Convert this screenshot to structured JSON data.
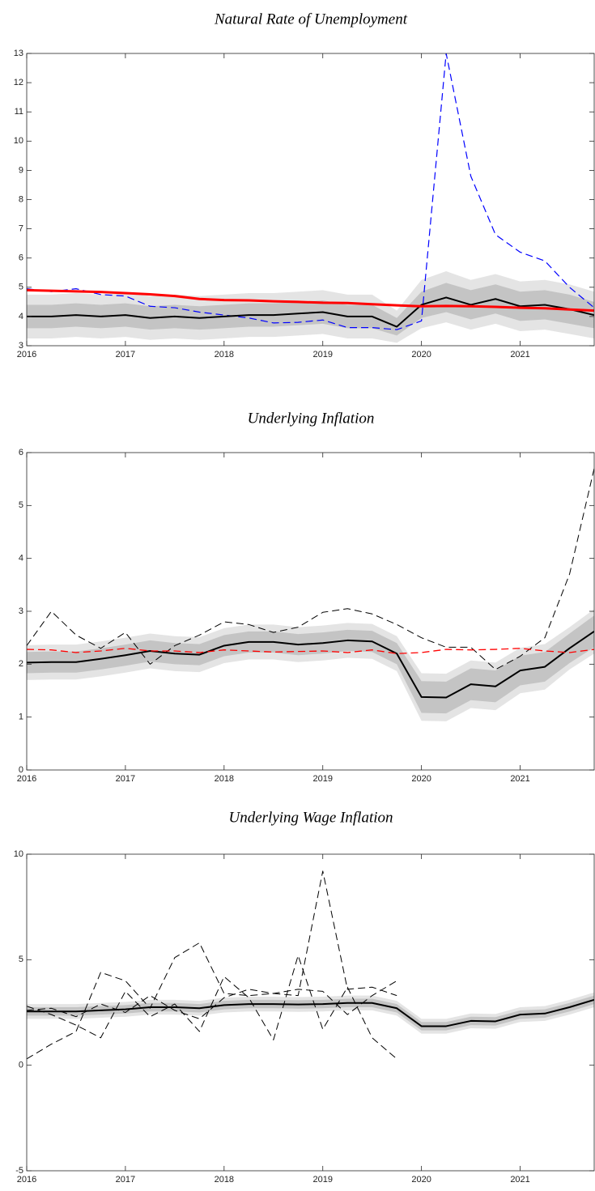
{
  "chart_data": [
    {
      "type": "line",
      "title": "Natural Rate of Unemployment",
      "x": [
        2016,
        2016.25,
        2016.5,
        2016.75,
        2017,
        2017.25,
        2017.5,
        2017.75,
        2018,
        2018.25,
        2018.5,
        2018.75,
        2019,
        2019.25,
        2019.5,
        2019.75,
        2020,
        2020.25,
        2020.5,
        2020.75,
        2021,
        2021.25,
        2021.5,
        2021.75
      ],
      "xlim": [
        2016,
        2021.75
      ],
      "xticks": [
        2016,
        2017,
        2018,
        2019,
        2020,
        2021
      ],
      "ylim": [
        3,
        13
      ],
      "yticks": [
        3,
        4,
        5,
        6,
        7,
        8,
        9,
        10,
        11,
        12,
        13
      ],
      "bands": [
        {
          "color": "#e4e4e4",
          "lower": [
            3.25,
            3.25,
            3.3,
            3.25,
            3.3,
            3.2,
            3.25,
            3.2,
            3.25,
            3.3,
            3.3,
            3.35,
            3.4,
            3.25,
            3.25,
            3.1,
            3.6,
            3.8,
            3.55,
            3.75,
            3.5,
            3.55,
            3.4,
            3.25
          ],
          "upper": [
            4.75,
            4.75,
            4.8,
            4.75,
            4.8,
            4.7,
            4.75,
            4.7,
            4.75,
            4.8,
            4.8,
            4.85,
            4.9,
            4.75,
            4.75,
            4.2,
            5.25,
            5.55,
            5.25,
            5.45,
            5.2,
            5.25,
            5.1,
            4.85
          ]
        },
        {
          "color": "#c4c4c4",
          "lower": [
            3.6,
            3.6,
            3.65,
            3.6,
            3.65,
            3.55,
            3.6,
            3.55,
            3.6,
            3.65,
            3.65,
            3.7,
            3.75,
            3.6,
            3.6,
            3.35,
            3.95,
            4.15,
            3.9,
            4.1,
            3.85,
            3.9,
            3.75,
            3.6
          ],
          "upper": [
            4.4,
            4.4,
            4.45,
            4.4,
            4.45,
            4.35,
            4.4,
            4.35,
            4.4,
            4.45,
            4.45,
            4.5,
            4.55,
            4.4,
            4.4,
            3.95,
            4.85,
            5.15,
            4.9,
            5.1,
            4.85,
            4.9,
            4.75,
            4.5
          ]
        }
      ],
      "series": [
        {
          "color": "#0000ff",
          "dashed": true,
          "width": 1.2,
          "values": [
            4.95,
            4.85,
            4.95,
            4.75,
            4.7,
            4.35,
            4.3,
            4.15,
            4.05,
            3.95,
            3.78,
            3.8,
            3.88,
            3.62,
            3.62,
            3.55,
            3.85,
            13.0,
            8.8,
            6.8,
            6.2,
            5.9,
            5.0,
            4.3
          ]
        },
        {
          "color": "#000000",
          "dashed": false,
          "width": 2,
          "values": [
            4.0,
            4.0,
            4.05,
            4.0,
            4.05,
            3.95,
            4.0,
            3.95,
            4.0,
            4.05,
            4.05,
            4.1,
            4.15,
            4.0,
            4.0,
            3.65,
            4.4,
            4.65,
            4.4,
            4.6,
            4.35,
            4.4,
            4.25,
            4.05
          ]
        },
        {
          "color": "#ff0000",
          "dashed": false,
          "width": 3,
          "values": [
            4.9,
            4.88,
            4.86,
            4.84,
            4.8,
            4.76,
            4.7,
            4.6,
            4.56,
            4.55,
            4.52,
            4.5,
            4.47,
            4.46,
            4.42,
            4.38,
            4.35,
            4.36,
            4.35,
            4.33,
            4.3,
            4.28,
            4.24,
            4.2
          ]
        }
      ]
    },
    {
      "type": "line",
      "title": "Underlying Inflation",
      "x": [
        2016,
        2016.25,
        2016.5,
        2016.75,
        2017,
        2017.25,
        2017.5,
        2017.75,
        2018,
        2018.25,
        2018.5,
        2018.75,
        2019,
        2019.25,
        2019.5,
        2019.75,
        2020,
        2020.25,
        2020.5,
        2020.75,
        2021,
        2021.25,
        2021.5,
        2021.75
      ],
      "xlim": [
        2016,
        2021.75
      ],
      "xticks": [
        2016,
        2017,
        2018,
        2019,
        2020,
        2021
      ],
      "ylim": [
        0,
        6
      ],
      "yticks": [
        0,
        1,
        2,
        3,
        4,
        5,
        6
      ],
      "bands": [
        {
          "color": "#e4e4e4",
          "lower": [
            1.7,
            1.71,
            1.71,
            1.77,
            1.84,
            1.92,
            1.87,
            1.85,
            2.02,
            2.09,
            2.09,
            2.04,
            2.07,
            2.12,
            2.1,
            1.87,
            0.93,
            0.92,
            1.17,
            1.13,
            1.45,
            1.52,
            1.9,
            2.2
          ],
          "upper": [
            2.36,
            2.37,
            2.37,
            2.43,
            2.5,
            2.58,
            2.53,
            2.51,
            2.68,
            2.75,
            2.75,
            2.7,
            2.73,
            2.78,
            2.76,
            2.53,
            1.83,
            1.82,
            2.07,
            2.03,
            2.31,
            2.38,
            2.7,
            3.04
          ]
        },
        {
          "color": "#c4c4c4",
          "lower": [
            1.83,
            1.84,
            1.84,
            1.9,
            1.97,
            2.05,
            2.0,
            1.98,
            2.15,
            2.22,
            2.22,
            2.17,
            2.2,
            2.25,
            2.23,
            2.0,
            1.08,
            1.07,
            1.32,
            1.28,
            1.6,
            1.67,
            2.02,
            2.32
          ],
          "upper": [
            2.23,
            2.24,
            2.24,
            2.3,
            2.37,
            2.45,
            2.4,
            2.38,
            2.55,
            2.62,
            2.62,
            2.57,
            2.6,
            2.65,
            2.63,
            2.4,
            1.68,
            1.67,
            1.92,
            1.88,
            2.16,
            2.23,
            2.58,
            2.92
          ]
        }
      ],
      "series": [
        {
          "color": "#000000",
          "dashed": true,
          "width": 1,
          "values": [
            2.35,
            3.0,
            2.55,
            2.3,
            2.6,
            2.0,
            2.35,
            2.55,
            2.8,
            2.75,
            2.6,
            2.7,
            2.98,
            3.05,
            2.95,
            2.75,
            2.5,
            2.32,
            2.32,
            1.9,
            2.15,
            2.5,
            3.7,
            5.7
          ]
        },
        {
          "color": "#000000",
          "dashed": false,
          "width": 2,
          "values": [
            2.03,
            2.04,
            2.04,
            2.1,
            2.17,
            2.25,
            2.2,
            2.18,
            2.35,
            2.42,
            2.42,
            2.37,
            2.4,
            2.45,
            2.43,
            2.2,
            1.38,
            1.37,
            1.62,
            1.58,
            1.88,
            1.95,
            2.3,
            2.62
          ]
        },
        {
          "color": "#ff0000",
          "dashed": true,
          "width": 1.3,
          "values": [
            2.28,
            2.27,
            2.22,
            2.25,
            2.3,
            2.25,
            2.25,
            2.22,
            2.27,
            2.25,
            2.23,
            2.24,
            2.25,
            2.22,
            2.27,
            2.2,
            2.22,
            2.28,
            2.27,
            2.28,
            2.3,
            2.25,
            2.22,
            2.28
          ]
        }
      ]
    },
    {
      "type": "line",
      "title": "Underlying Wage Inflation",
      "x": [
        2016,
        2016.25,
        2016.5,
        2016.75,
        2017,
        2017.25,
        2017.5,
        2017.75,
        2018,
        2018.25,
        2018.5,
        2018.75,
        2019,
        2019.25,
        2019.5,
        2019.75,
        2020,
        2020.25,
        2020.5,
        2020.75,
        2021,
        2021.25,
        2021.5,
        2021.75
      ],
      "xlim": [
        2016,
        2021.75
      ],
      "xticks": [
        2016,
        2017,
        2018,
        2019,
        2020,
        2021
      ],
      "ylim": [
        -5,
        10
      ],
      "yticks": [
        -5,
        0,
        5,
        10
      ],
      "bands": [
        {
          "color": "#e4e4e4",
          "lower": [
            2.2,
            2.2,
            2.2,
            2.25,
            2.3,
            2.4,
            2.4,
            2.35,
            2.5,
            2.55,
            2.55,
            2.53,
            2.55,
            2.6,
            2.6,
            2.35,
            1.5,
            1.5,
            1.75,
            1.73,
            2.05,
            2.1,
            2.4,
            2.75
          ],
          "upper": [
            2.9,
            2.9,
            2.9,
            2.95,
            3.0,
            3.1,
            3.1,
            3.05,
            3.2,
            3.25,
            3.25,
            3.23,
            3.25,
            3.3,
            3.3,
            3.05,
            2.2,
            2.2,
            2.45,
            2.43,
            2.75,
            2.8,
            3.1,
            3.45
          ]
        },
        {
          "color": "#c4c4c4",
          "lower": [
            2.35,
            2.35,
            2.35,
            2.4,
            2.45,
            2.55,
            2.55,
            2.5,
            2.65,
            2.7,
            2.7,
            2.68,
            2.7,
            2.75,
            2.75,
            2.5,
            1.65,
            1.65,
            1.9,
            1.88,
            2.2,
            2.25,
            2.55,
            2.9
          ],
          "upper": [
            2.75,
            2.75,
            2.75,
            2.8,
            2.85,
            2.95,
            2.95,
            2.9,
            3.05,
            3.1,
            3.1,
            3.08,
            3.1,
            3.15,
            3.15,
            2.9,
            2.05,
            2.05,
            2.3,
            2.28,
            2.6,
            2.65,
            2.95,
            3.3
          ]
        }
      ],
      "series": [
        {
          "color": "#000000",
          "dashed": true,
          "width": 1,
          "values": [
            0.3,
            1.0,
            1.6,
            4.4,
            4.0,
            2.7,
            5.1,
            5.8,
            3.4,
            3.3,
            3.4,
            3.3,
            9.2,
            3.6,
            3.7,
            3.3,
            null,
            null,
            null,
            null,
            null,
            null,
            null,
            null
          ]
        },
        {
          "color": "#000000",
          "dashed": true,
          "width": 1,
          "values": [
            2.8,
            2.4,
            1.9,
            1.3,
            3.5,
            2.3,
            2.9,
            1.6,
            4.2,
            3.2,
            1.2,
            5.2,
            1.7,
            3.7,
            1.3,
            0.3,
            null,
            null,
            null,
            null,
            null,
            null,
            null,
            null
          ]
        },
        {
          "color": "#000000",
          "dashed": true,
          "width": 1,
          "values": [
            2.6,
            2.7,
            2.3,
            2.9,
            2.5,
            3.3,
            2.6,
            2.2,
            3.2,
            3.6,
            3.4,
            3.6,
            3.5,
            2.4,
            3.3,
            4.0,
            null,
            null,
            null,
            null,
            null,
            null,
            null,
            null
          ]
        },
        {
          "color": "#000000",
          "dashed": false,
          "width": 2,
          "values": [
            2.55,
            2.55,
            2.55,
            2.6,
            2.65,
            2.75,
            2.75,
            2.7,
            2.85,
            2.9,
            2.9,
            2.88,
            2.9,
            2.95,
            2.95,
            2.7,
            1.85,
            1.85,
            2.1,
            2.08,
            2.4,
            2.45,
            2.75,
            3.1
          ]
        }
      ]
    }
  ]
}
